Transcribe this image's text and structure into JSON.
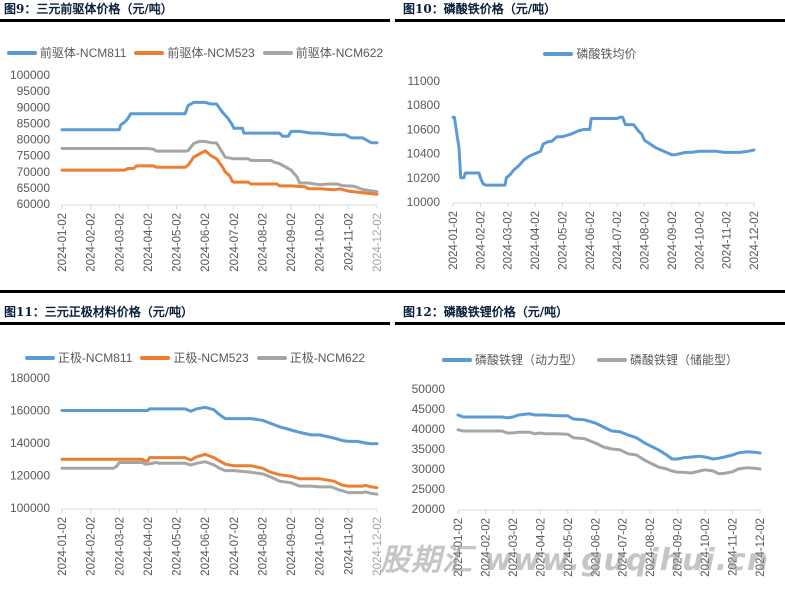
{
  "colors": {
    "blue": "#5b9bd5",
    "orange": "#ed7d31",
    "gray": "#a5a5a5",
    "title": "#0b1f3a",
    "axis_text": "#595959",
    "axis_line": "#d9d9d9"
  },
  "watermark": "股期汇 www.guqihui.cn",
  "chart_data": [
    {
      "type": "line",
      "title": "图9：三元前驱体价格（元/吨）",
      "xlabel": "",
      "ylabel": "",
      "ylim": [
        60000,
        100000
      ],
      "yticks": [
        "100000",
        "95000",
        "90000",
        "85000",
        "80000",
        "75000",
        "70000",
        "65000",
        "60000"
      ],
      "ytick_values": [
        100000,
        95000,
        90000,
        85000,
        80000,
        75000,
        70000,
        65000,
        60000
      ],
      "categories": [
        "2024-01-02",
        "2024-02-02",
        "2024-03-02",
        "2024-04-02",
        "2024-05-02",
        "2024-06-02",
        "2024-07-02",
        "2024-08-02",
        "2024-09-02",
        "2024-10-02",
        "2024-11-02",
        "2024-12-02"
      ],
      "legend_position": "top",
      "grid": false,
      "series": [
        {
          "name": "前驱体-NCM811",
          "color": "#5b9bd5",
          "x": [
            0,
            2.0,
            2.05,
            2.2,
            2.3,
            2.4,
            4.3,
            4.4,
            4.6,
            5.0,
            5.2,
            5.4,
            5.6,
            5.8,
            5.95,
            6.0,
            6.3,
            6.35,
            7.0,
            7.1,
            7.6,
            7.7,
            7.9,
            8.0,
            8.3,
            8.7,
            9.0,
            9.5,
            9.9,
            10.1,
            10.5,
            10.8,
            11.0
          ],
          "y": [
            83000,
            83000,
            84500,
            85500,
            86500,
            88000,
            88000,
            90500,
            91500,
            91500,
            91000,
            91000,
            88500,
            86500,
            84500,
            83500,
            83500,
            82000,
            82000,
            82000,
            82000,
            81000,
            81000,
            82500,
            82500,
            82000,
            82000,
            81500,
            81500,
            80500,
            80500,
            79000,
            79000
          ]
        },
        {
          "name": "前驱体-NCM523",
          "color": "#ed7d31",
          "x": [
            0,
            2.2,
            2.3,
            2.5,
            2.6,
            2.8,
            3.2,
            3.3,
            4.3,
            4.4,
            4.6,
            4.8,
            5.0,
            5.2,
            5.4,
            5.6,
            5.7,
            5.85,
            5.95,
            6.0,
            6.5,
            6.6,
            7.0,
            7.5,
            7.6,
            8.0,
            8.5,
            8.6,
            9.0,
            9.5,
            9.7,
            10.0,
            10.5,
            11.0
          ],
          "y": [
            70500,
            70500,
            71000,
            71000,
            71800,
            71800,
            71800,
            71400,
            71400,
            72000,
            74500,
            75500,
            76500,
            75000,
            74000,
            71500,
            70000,
            68800,
            67000,
            66800,
            66800,
            66200,
            66200,
            66200,
            65600,
            65600,
            65300,
            64700,
            64700,
            64400,
            64700,
            64000,
            63500,
            63000
          ]
        },
        {
          "name": "前驱体-NCM622",
          "color": "#a5a5a5",
          "x": [
            0,
            3.0,
            3.2,
            3.3,
            4.3,
            4.4,
            4.6,
            4.8,
            5.0,
            5.2,
            5.4,
            5.6,
            5.7,
            6.0,
            6.5,
            6.6,
            7.3,
            7.4,
            7.6,
            7.8,
            8.0,
            8.2,
            8.3,
            8.6,
            9.0,
            9.3,
            9.6,
            9.8,
            10.2,
            10.5,
            11.0
          ],
          "y": [
            77200,
            77200,
            77000,
            76400,
            76400,
            76500,
            78800,
            79400,
            79400,
            79000,
            78900,
            76000,
            74500,
            74000,
            74000,
            73500,
            73500,
            73000,
            72500,
            71500,
            70500,
            68500,
            66500,
            66500,
            66000,
            66200,
            66200,
            65700,
            65500,
            64500,
            63800
          ]
        }
      ]
    },
    {
      "type": "line",
      "title": "图10：磷酸铁价格（元/吨）",
      "xlabel": "",
      "ylabel": "",
      "ylim": [
        10000,
        11000
      ],
      "yticks": [
        "11000",
        "10800",
        "10600",
        "10400",
        "10200",
        "10000"
      ],
      "ytick_values": [
        11000,
        10800,
        10600,
        10400,
        10200,
        10000
      ],
      "categories": [
        "2024-01-02",
        "2024-02-02",
        "2024-03-02",
        "2024-04-02",
        "2024-05-02",
        "2024-06-02",
        "2024-07-02",
        "2024-08-02",
        "2024-09-02",
        "2024-10-02",
        "2024-11-02",
        "2024-12-02"
      ],
      "legend_position": "top",
      "grid": false,
      "series": [
        {
          "name": "磷酸铁均价",
          "color": "#5b9bd5",
          "x": [
            0,
            0.05,
            0.15,
            0.22,
            0.28,
            0.4,
            0.45,
            0.95,
            1.0,
            1.1,
            1.2,
            1.9,
            1.95,
            2.1,
            2.2,
            2.4,
            2.6,
            2.8,
            3.0,
            3.2,
            3.3,
            3.5,
            3.6,
            3.8,
            4.0,
            4.3,
            4.6,
            4.8,
            5.0,
            5.05,
            5.3,
            6.0,
            6.1,
            6.2,
            6.3,
            6.6,
            6.8,
            6.9,
            7.0,
            7.2,
            7.4,
            7.7,
            7.9,
            8.0,
            8.1,
            8.3,
            8.5,
            8.7,
            9.0,
            9.3,
            9.6,
            9.9,
            10.2,
            10.5,
            10.8,
            11.0
          ],
          "y": [
            10700,
            10700,
            10550,
            10450,
            10200,
            10200,
            10240,
            10240,
            10200,
            10150,
            10140,
            10140,
            10200,
            10230,
            10260,
            10300,
            10350,
            10380,
            10400,
            10420,
            10480,
            10500,
            10500,
            10540,
            10540,
            10560,
            10590,
            10600,
            10600,
            10690,
            10690,
            10690,
            10700,
            10700,
            10640,
            10640,
            10580,
            10560,
            10510,
            10480,
            10450,
            10420,
            10400,
            10390,
            10390,
            10400,
            10410,
            10410,
            10420,
            10420,
            10420,
            10410,
            10410,
            10410,
            10420,
            10430
          ]
        }
      ]
    },
    {
      "type": "line",
      "title": "图11：三元正极材料价格（元/吨）",
      "xlabel": "",
      "ylabel": "",
      "ylim": [
        100000,
        180000
      ],
      "yticks": [
        "180000",
        "160000",
        "140000",
        "120000",
        "100000"
      ],
      "ytick_values": [
        180000,
        160000,
        140000,
        120000,
        100000
      ],
      "categories": [
        "2024-01-02",
        "2024-02-02",
        "2024-03-02",
        "2024-04-02",
        "2024-05-02",
        "2024-06-02",
        "2024-07-02",
        "2024-08-02",
        "2024-09-02",
        "2024-10-02",
        "2024-11-02",
        "2024-12-02"
      ],
      "legend_position": "top",
      "grid": false,
      "series": [
        {
          "name": "正极-NCM811",
          "color": "#5b9bd5",
          "x": [
            0,
            3.0,
            3.05,
            4.3,
            4.5,
            4.7,
            5.0,
            5.3,
            5.5,
            5.7,
            6.0,
            6.6,
            7.0,
            7.3,
            7.6,
            8.0,
            8.3,
            8.7,
            9.0,
            9.5,
            9.8,
            10.0,
            10.3,
            10.6,
            10.8,
            11.0
          ],
          "y": [
            160000,
            160000,
            161000,
            161000,
            159500,
            161000,
            162000,
            160500,
            157500,
            155000,
            155000,
            155000,
            154000,
            152000,
            150000,
            148000,
            146500,
            145000,
            145000,
            143000,
            141500,
            141000,
            141000,
            140000,
            139500,
            139500
          ]
        },
        {
          "name": "正极-NCM523",
          "color": "#ed7d31",
          "x": [
            0,
            2.8,
            2.9,
            3.0,
            3.05,
            4.3,
            4.5,
            4.7,
            5.0,
            5.3,
            5.5,
            5.7,
            6.0,
            6.6,
            7.0,
            7.3,
            7.6,
            8.0,
            8.3,
            8.7,
            9.0,
            9.5,
            9.8,
            10.0,
            10.3,
            10.5,
            10.6,
            10.8,
            11.0
          ],
          "y": [
            130000,
            130000,
            129000,
            129000,
            131000,
            131000,
            129500,
            131500,
            133000,
            131000,
            129000,
            127000,
            126000,
            126000,
            124500,
            122000,
            120500,
            119500,
            118000,
            118000,
            118000,
            116500,
            114000,
            113500,
            113500,
            113500,
            114000,
            113000,
            112500
          ]
        },
        {
          "name": "正极-NCM622",
          "color": "#a5a5a5",
          "x": [
            0,
            1.8,
            1.9,
            2.0,
            2.8,
            2.9,
            3.0,
            3.3,
            3.4,
            4.3,
            4.5,
            4.7,
            5.0,
            5.3,
            5.5,
            5.7,
            6.0,
            6.6,
            7.0,
            7.3,
            7.6,
            8.0,
            8.3,
            8.7,
            9.0,
            9.4,
            9.7,
            10.0,
            10.3,
            10.5,
            10.6,
            10.8,
            11.0
          ],
          "y": [
            124500,
            124500,
            125500,
            128000,
            128000,
            127000,
            127000,
            128000,
            127500,
            127500,
            126500,
            127500,
            128500,
            126500,
            124500,
            123000,
            123000,
            122000,
            121000,
            119000,
            116500,
            115500,
            113500,
            113500,
            113000,
            113000,
            111000,
            109500,
            109500,
            109500,
            110000,
            109000,
            108500
          ]
        }
      ]
    },
    {
      "type": "line",
      "title": "图12：磷酸铁锂价格（元/吨）",
      "xlabel": "",
      "ylabel": "",
      "ylim": [
        20000,
        50000
      ],
      "yticks": [
        "50000",
        "45000",
        "40000",
        "35000",
        "30000",
        "25000",
        "20000"
      ],
      "ytick_values": [
        50000,
        45000,
        40000,
        35000,
        30000,
        25000,
        20000
      ],
      "categories": [
        "2024-01-02",
        "2024-02-02",
        "2024-03-02",
        "2024-04-02",
        "2024-05-02",
        "2024-06-02",
        "2024-07-02",
        "2024-08-02",
        "2024-09-02",
        "2024-10-02",
        "2024-11-02",
        "2024-12-02"
      ],
      "legend_position": "top",
      "grid": false,
      "series": [
        {
          "name": "磷酸铁锂（动力型）",
          "color": "#5b9bd5",
          "x": [
            0,
            0.2,
            1.6,
            1.8,
            2.0,
            2.2,
            2.6,
            2.8,
            3.0,
            3.2,
            3.6,
            4.0,
            4.2,
            4.6,
            5.0,
            5.3,
            5.6,
            5.9,
            6.2,
            6.5,
            6.8,
            7.0,
            7.3,
            7.6,
            7.8,
            8.0,
            8.2,
            8.5,
            8.8,
            9.0,
            9.3,
            9.5,
            9.7,
            10.0,
            10.2,
            10.5,
            10.8,
            11.0
          ],
          "y": [
            43500,
            43000,
            43000,
            42800,
            43000,
            43500,
            43800,
            43500,
            43500,
            43500,
            43300,
            43300,
            42500,
            42300,
            41500,
            40500,
            39500,
            39300,
            38500,
            37800,
            36500,
            35800,
            34800,
            33500,
            32500,
            32500,
            32800,
            33000,
            33200,
            33000,
            32500,
            32700,
            33000,
            33500,
            34000,
            34300,
            34200,
            34000
          ]
        },
        {
          "name": "磷酸铁锂（储能型）",
          "color": "#a5a5a5",
          "x": [
            0,
            0.2,
            1.6,
            1.8,
            2.0,
            2.2,
            2.6,
            2.8,
            3.0,
            3.2,
            3.6,
            4.0,
            4.2,
            4.6,
            5.0,
            5.3,
            5.6,
            5.9,
            6.2,
            6.5,
            6.8,
            7.0,
            7.3,
            7.6,
            7.8,
            8.0,
            8.2,
            8.5,
            8.8,
            9.0,
            9.3,
            9.5,
            9.7,
            10.0,
            10.2,
            10.5,
            10.8,
            11.0
          ],
          "y": [
            39800,
            39500,
            39500,
            39000,
            39000,
            39200,
            39200,
            38800,
            39000,
            38800,
            38800,
            38700,
            37800,
            37600,
            36500,
            35500,
            35000,
            34800,
            33800,
            33500,
            32200,
            31500,
            30500,
            30000,
            29500,
            29200,
            29200,
            29000,
            29500,
            29800,
            29500,
            28800,
            28900,
            29300,
            30000,
            30300,
            30200,
            30000
          ]
        }
      ]
    }
  ]
}
